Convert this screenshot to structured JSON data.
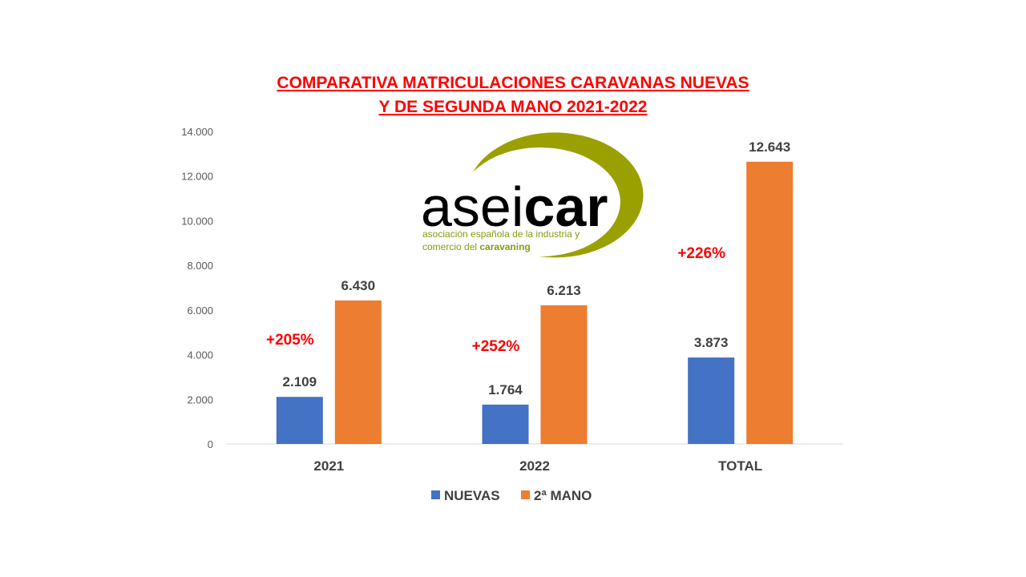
{
  "title": {
    "line1": "COMPARATIVA MATRICULACIONES CARAVANAS NUEVAS",
    "line2": "Y DE SEGUNDA MANO 2021-2022"
  },
  "logo": {
    "light": "asei",
    "bold": "car",
    "sub_line1": "asociación española de la industria y",
    "sub_line2_prefix": "comercio del ",
    "sub_line2_bold": "caravaning",
    "colors": {
      "ring": "#9aa000",
      "text": "#000000",
      "sub": "#8a9a10"
    }
  },
  "chart_data": {
    "type": "bar",
    "categories": [
      "2021",
      "2022",
      "TOTAL"
    ],
    "series": [
      {
        "name": "NUEVAS",
        "color": "#4472c4",
        "values": [
          2109,
          1764,
          3873
        ],
        "labels": [
          "2.109",
          "1.764",
          "3.873"
        ]
      },
      {
        "name": "2ª MANO",
        "color": "#ed7d31",
        "values": [
          6430,
          6213,
          12643
        ],
        "labels": [
          "6.430",
          "6.213",
          "12.643"
        ]
      }
    ],
    "annotations": [
      "+205%",
      "+252%",
      "+226%"
    ],
    "ylim": [
      0,
      14000
    ],
    "yticks": [
      0,
      2000,
      4000,
      6000,
      8000,
      10000,
      12000,
      14000
    ],
    "ytick_labels": [
      "0",
      "2.000",
      "4.000",
      "6.000",
      "8.000",
      "10.000",
      "12.000",
      "14.000"
    ],
    "legend_position": "bottom",
    "grid": false
  }
}
